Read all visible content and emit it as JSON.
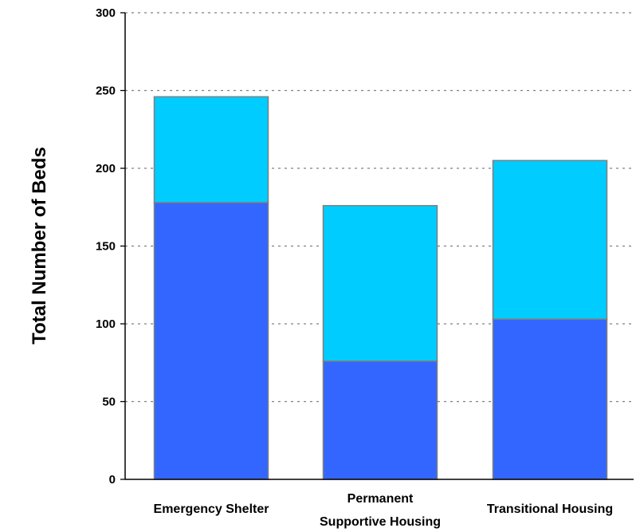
{
  "chart_data": {
    "type": "bar",
    "stacked": true,
    "categories": [
      [
        "Emergency Shelter"
      ],
      [
        "Permanent",
        "Supportive Housing"
      ],
      [
        "Transitional Housing"
      ]
    ],
    "series": [
      {
        "values": [
          178,
          76,
          103
        ],
        "color": "#3366ff"
      },
      {
        "values": [
          68,
          100,
          102
        ],
        "color": "#00ccff"
      }
    ],
    "ylabel": "Total Number of Beds",
    "xlabel": "",
    "ylim": [
      0,
      300
    ],
    "yticks": [
      0,
      50,
      100,
      150,
      200,
      250,
      300
    ],
    "grid": true,
    "grid_style": "dotted",
    "legend": "none"
  }
}
